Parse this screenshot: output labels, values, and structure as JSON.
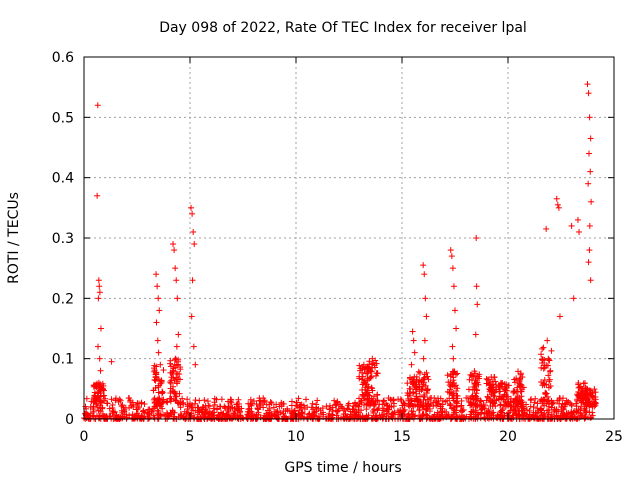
{
  "chart_data": {
    "type": "scatter",
    "title": "Day 098 of 2022, Rate Of TEC Index for receiver lpal",
    "xlabel": "GPS time / hours",
    "ylabel": "ROTI / TECUs",
    "xlim": [
      0,
      25
    ],
    "ylim": [
      0,
      0.6
    ],
    "xticks": [
      "0",
      "5",
      "10",
      "15",
      "20",
      "25"
    ],
    "yticks": [
      "0",
      "0.1",
      "0.2",
      "0.3",
      "0.4",
      "0.5",
      "0.6"
    ],
    "grid": true,
    "marker": "plus",
    "color": "#ff0000",
    "series": [
      {
        "x": [
          0.65,
          0.62,
          0.7,
          0.72,
          0.75,
          0.68,
          0.8,
          0.66,
          0.74,
          0.78,
          0.7,
          0.76,
          3.4,
          3.45,
          3.5,
          3.55,
          3.42,
          3.48,
          3.52,
          3.6,
          3.38,
          4.2,
          4.25,
          4.3,
          4.35,
          4.4,
          4.45,
          4.38,
          4.32,
          4.28,
          4.22,
          5.05,
          5.1,
          5.15,
          5.2,
          5.12,
          5.08,
          5.18,
          5.25,
          15.5,
          15.55,
          15.6,
          15.45,
          15.58,
          16.0,
          16.05,
          16.1,
          16.15,
          16.08,
          16.02,
          17.3,
          17.35,
          17.4,
          17.45,
          17.5,
          17.55,
          17.38,
          17.42,
          18.5,
          18.52,
          18.55,
          18.48,
          21.8,
          21.85,
          21.9,
          22.0,
          22.3,
          22.35,
          22.4,
          22.45,
          23.0,
          23.1,
          23.3,
          23.35,
          23.75,
          23.8,
          23.85,
          23.9,
          23.82,
          23.88,
          23.78,
          23.92,
          23.86,
          23.84,
          23.8,
          23.9,
          13.2,
          13.6,
          1.3
        ],
        "y": [
          0.52,
          0.37,
          0.23,
          0.22,
          0.21,
          0.2,
          0.15,
          0.12,
          0.1,
          0.08,
          0.06,
          0.055,
          0.24,
          0.22,
          0.2,
          0.18,
          0.16,
          0.13,
          0.11,
          0.09,
          0.07,
          0.29,
          0.28,
          0.25,
          0.23,
          0.2,
          0.14,
          0.12,
          0.1,
          0.09,
          0.08,
          0.35,
          0.34,
          0.31,
          0.29,
          0.23,
          0.17,
          0.12,
          0.09,
          0.145,
          0.13,
          0.11,
          0.09,
          0.07,
          0.255,
          0.24,
          0.2,
          0.17,
          0.13,
          0.1,
          0.28,
          0.27,
          0.25,
          0.22,
          0.18,
          0.15,
          0.12,
          0.1,
          0.3,
          0.22,
          0.19,
          0.14,
          0.315,
          0.13,
          0.1,
          0.08,
          0.365,
          0.355,
          0.35,
          0.17,
          0.32,
          0.2,
          0.33,
          0.31,
          0.555,
          0.54,
          0.5,
          0.465,
          0.44,
          0.41,
          0.39,
          0.36,
          0.32,
          0.28,
          0.26,
          0.23,
          0.09,
          0.1,
          0.095
        ]
      }
    ]
  }
}
